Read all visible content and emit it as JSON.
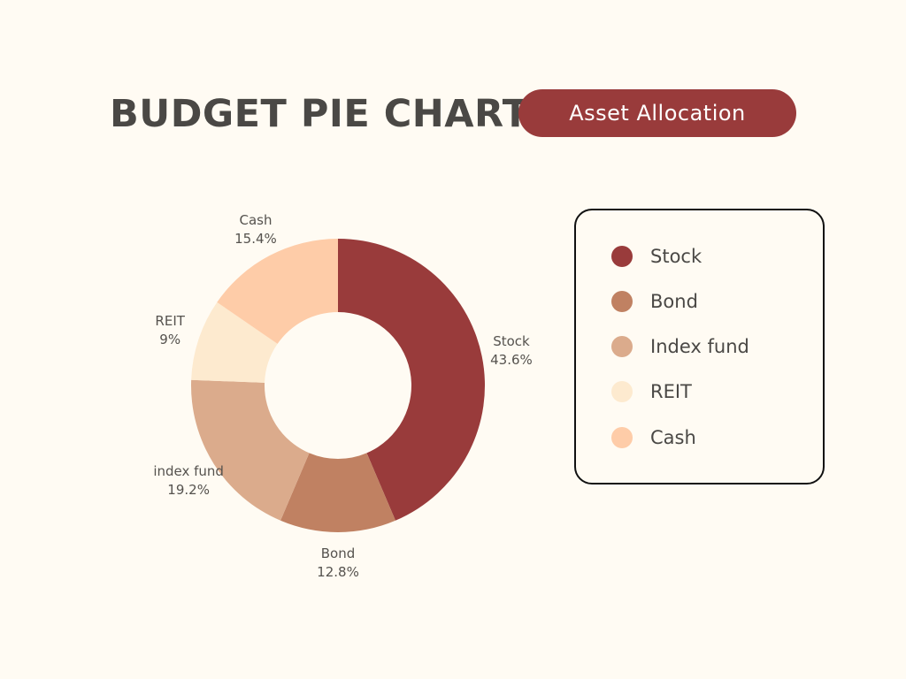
{
  "header": {
    "title": "BUDGET PIE CHART",
    "badge": "Asset Allocation"
  },
  "legend": {
    "items": [
      {
        "label": "Stock",
        "color": "#993b3b"
      },
      {
        "label": "Bond",
        "color": "#c08162"
      },
      {
        "label": "Index fund",
        "color": "#dbab8c"
      },
      {
        "label": "REIT",
        "color": "#fdeacf"
      },
      {
        "label": "Cash",
        "color": "#fecca8"
      }
    ]
  },
  "chart_data": {
    "type": "pie",
    "style": "donut",
    "title": "BUDGET PIE CHART",
    "subtitle": "Asset Allocation",
    "slices": [
      {
        "label": "Stock",
        "value": 43.6,
        "value_label": "43.6%",
        "color": "#993b3b"
      },
      {
        "label": "Bond",
        "value": 12.8,
        "value_label": "12.8%",
        "color": "#c08162"
      },
      {
        "label": "index fund",
        "value": 19.2,
        "value_label": "19.2%",
        "color": "#dbab8c"
      },
      {
        "label": "REIT",
        "value": 9,
        "value_label": "9%",
        "color": "#fdeacf"
      },
      {
        "label": "Cash",
        "value": 15.4,
        "value_label": "15.4%",
        "color": "#fecca8"
      }
    ],
    "start_angle_deg": 0,
    "direction": "clockwise",
    "legend_position": "right"
  }
}
